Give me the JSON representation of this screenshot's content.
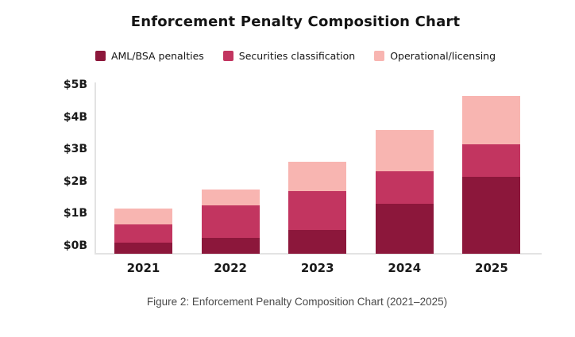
{
  "title": "Enforcement Penalty Composition Chart",
  "caption": "Figure 2: Enforcement Penalty Composition Chart (2021–2025)",
  "colors": {
    "aml_bsa": "#8c173b",
    "securities": "#c23560",
    "operational": "#f8b5b1",
    "axis_line": "#e3e3e3",
    "caption_text": "#4a4a4a"
  },
  "legend": [
    {
      "label": "AML/BSA penalties",
      "color": "#8c173b"
    },
    {
      "label": "Securities classification",
      "color": "#c23560"
    },
    {
      "label": "Operational/licensing",
      "color": "#f8b5b1"
    }
  ],
  "chart_data": {
    "type": "bar",
    "stacked": true,
    "title": "Enforcement Penalty Composition Chart",
    "categories": [
      "2021",
      "2022",
      "2023",
      "2024",
      "2025"
    ],
    "series": [
      {
        "name": "AML/BSA penalties",
        "color": "#8c173b",
        "values": [
          0.35,
          0.5,
          0.75,
          1.55,
          2.4
        ]
      },
      {
        "name": "Securities classification",
        "color": "#c23560",
        "values": [
          0.55,
          1.0,
          1.2,
          1.0,
          1.0
        ]
      },
      {
        "name": "Operational/licensing",
        "color": "#f8b5b1",
        "values": [
          0.5,
          0.5,
          0.9,
          1.3,
          1.5
        ]
      }
    ],
    "stack_totals_billions": [
      1.4,
      2.0,
      2.85,
      3.85,
      4.9
    ],
    "xlabel": "",
    "ylabel": "",
    "yticks": [
      "$0B",
      "$1B",
      "$2B",
      "$3B",
      "$4B",
      "$5B"
    ],
    "ytick_values": [
      0,
      1,
      2,
      3,
      4,
      5
    ],
    "ylim": [
      0,
      5
    ],
    "unit": "USD billions",
    "grid": false,
    "legend_position": "top"
  }
}
